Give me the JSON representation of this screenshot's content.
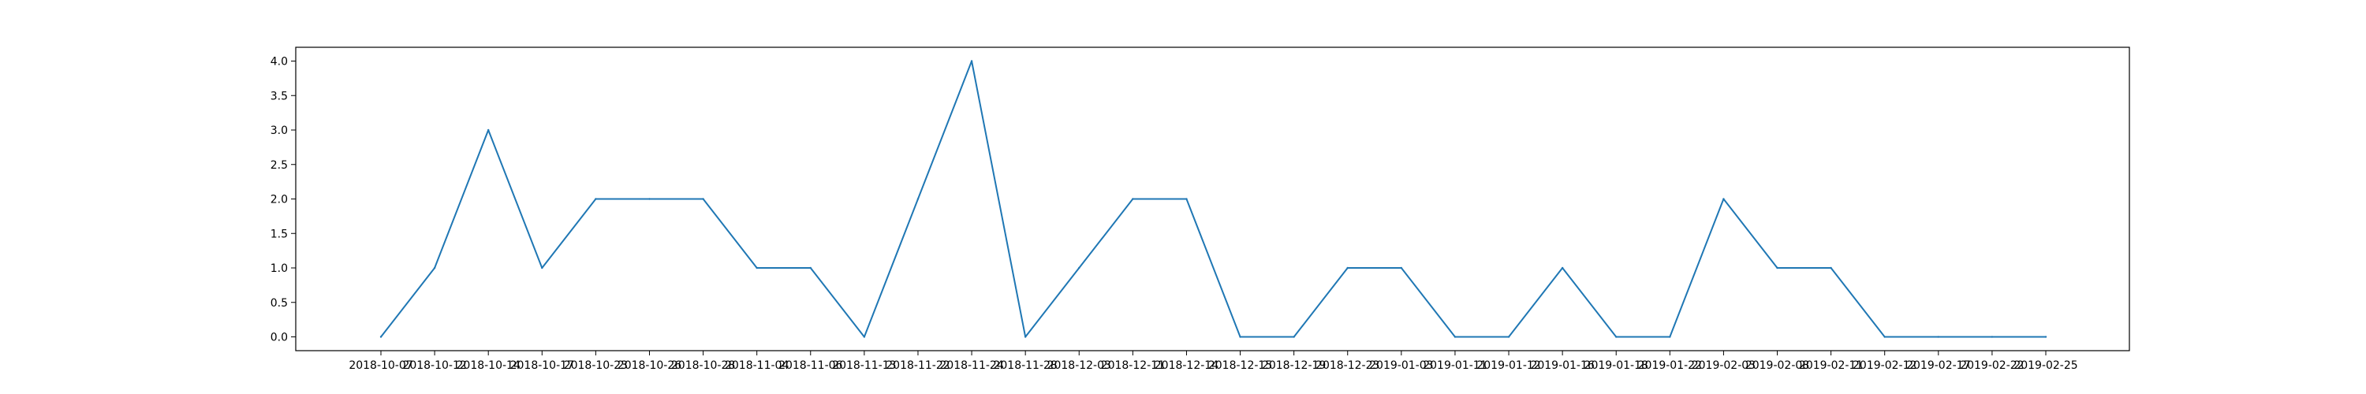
{
  "chart_data": {
    "type": "line",
    "title": "",
    "xlabel": "",
    "ylabel": "",
    "x": [
      "2018-10-07",
      "2018-10-12",
      "2018-10-14",
      "2018-10-17",
      "2018-10-23",
      "2018-10-26",
      "2018-10-28",
      "2018-11-04",
      "2018-11-06",
      "2018-11-13",
      "2018-11-22",
      "2018-11-24",
      "2018-11-28",
      "2018-12-03",
      "2018-12-11",
      "2018-12-14",
      "2018-12-15",
      "2018-12-19",
      "2018-12-23",
      "2019-01-03",
      "2019-01-11",
      "2019-01-12",
      "2019-01-16",
      "2019-01-18",
      "2019-01-22",
      "2019-02-03",
      "2019-02-08",
      "2019-02-11",
      "2019-02-12",
      "2019-02-17",
      "2019-02-22",
      "2019-02-25"
    ],
    "series": [
      {
        "values": [
          0,
          1,
          3,
          1,
          2,
          2,
          2,
          1,
          1,
          0,
          2,
          4,
          0,
          1,
          2,
          2,
          0,
          0,
          1,
          1,
          0,
          0,
          1,
          0,
          0,
          2,
          1,
          1,
          0,
          0,
          0,
          0
        ],
        "color": "#1f77b4"
      }
    ],
    "y_ticks": [
      "0.0",
      "0.5",
      "1.0",
      "1.5",
      "2.0",
      "2.5",
      "3.0",
      "3.5",
      "4.0"
    ],
    "ylim": [
      -0.2,
      4.2
    ],
    "grid": false,
    "legend": "none"
  }
}
